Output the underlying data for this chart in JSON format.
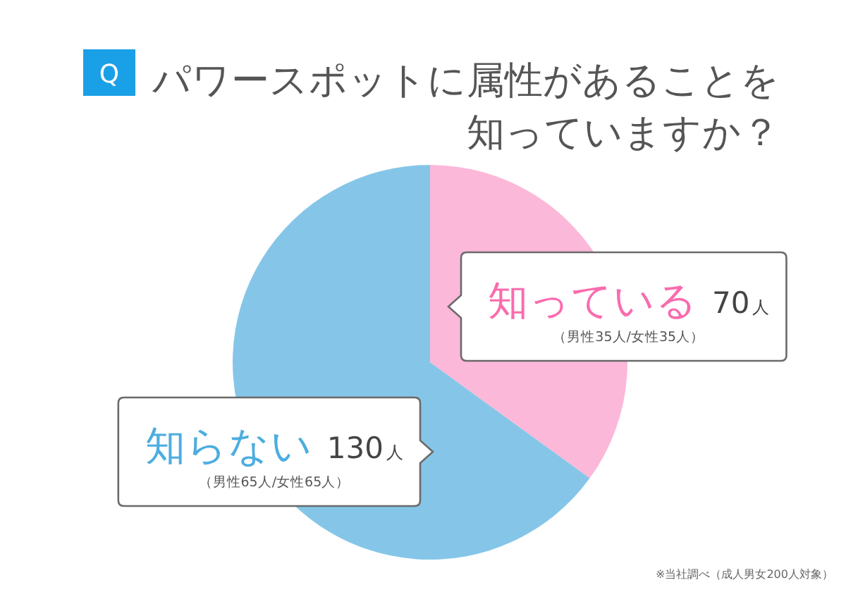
{
  "chart_data": {
    "type": "pie",
    "title": "パワースポットに属性があることを知っていますか？",
    "categories": [
      "知っている",
      "知らない"
    ],
    "values": [
      70,
      130
    ],
    "colors": [
      "#fcb8d8",
      "#85c6e8"
    ],
    "value_labels": [
      "70人",
      "130人"
    ],
    "annotations": [
      "Q",
      {
        "text": "（男性35人/女性35人）",
        "x": "知っている"
      },
      {
        "text": "（男性65人/女性65人）",
        "x": "知らない"
      },
      "※当社調べ（成人男女200人対象）"
    ]
  }
}
